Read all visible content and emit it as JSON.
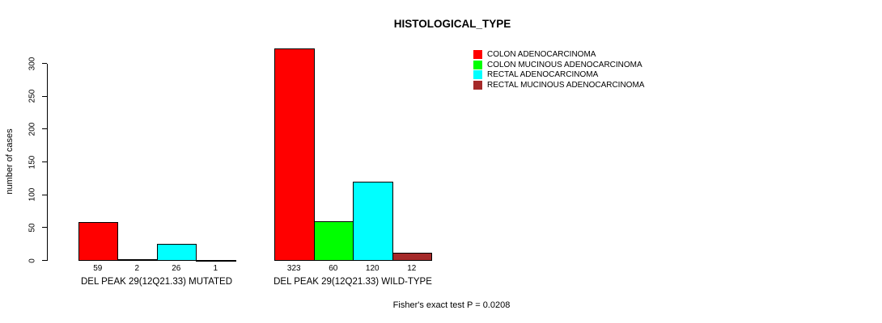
{
  "title": "HISTOLOGICAL_TYPE",
  "footer": "Fisher's exact test P = 0.0208",
  "chart_data": {
    "type": "bar",
    "title": "HISTOLOGICAL_TYPE",
    "ylabel": "number of cases",
    "xlabel": "",
    "ylim": [
      0,
      323
    ],
    "yticks": [
      0,
      50,
      100,
      150,
      200,
      250,
      300
    ],
    "grid": false,
    "legend_position": "right",
    "legend": [
      {
        "label": "COLON ADENOCARCINOMA",
        "color": "#FF0000"
      },
      {
        "label": "COLON MUCINOUS ADENOCARCINOMA",
        "color": "#00FF00"
      },
      {
        "label": "RECTAL ADENOCARCINOMA",
        "color": "#00FFFF"
      },
      {
        "label": "RECTAL MUCINOUS ADENOCARCINOMA",
        "color": "#A52A2A"
      }
    ],
    "groups": [
      {
        "label": "DEL PEAK 29(12Q21.33) MUTATED",
        "values": [
          59,
          2,
          26,
          1
        ]
      },
      {
        "label": "DEL PEAK 29(12Q21.33) WILD-TYPE",
        "values": [
          323,
          60,
          120,
          12
        ]
      }
    ],
    "annotation": "Fisher's exact test P = 0.0208"
  }
}
